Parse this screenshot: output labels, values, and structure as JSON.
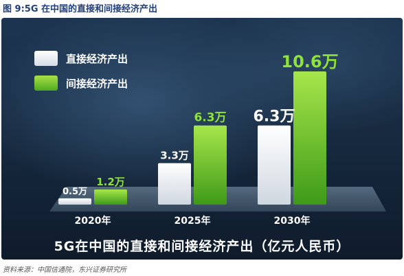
{
  "figure": {
    "title": "图 9:5G 在中国的直接和间接经济产出",
    "source": "资料来源：中国信通院，东兴证券研究所"
  },
  "chart_data": {
    "type": "bar",
    "title": "5G在中国的直接和间接经济产出（亿元人民币）",
    "categories": [
      "2020年",
      "2025年",
      "2030年"
    ],
    "series": [
      {
        "name": "直接经济产出",
        "values": [
          0.5,
          3.3,
          6.3
        ],
        "labels": [
          "0.5万",
          "3.3万",
          "6.3万"
        ],
        "color": "#ffffff"
      },
      {
        "name": "间接经济产出",
        "values": [
          1.2,
          6.3,
          10.6
        ],
        "labels": [
          "1.2万",
          "6.3万",
          "10.6万"
        ],
        "color": "#7ed321"
      }
    ],
    "ylim": [
      0,
      10.6
    ],
    "legend_position": "top-left",
    "grid": false
  },
  "colors": {
    "direct": "#ffffff",
    "indirect": "#7ed321",
    "indirect_label": "#8fe23a",
    "background": "#1a2f46"
  }
}
